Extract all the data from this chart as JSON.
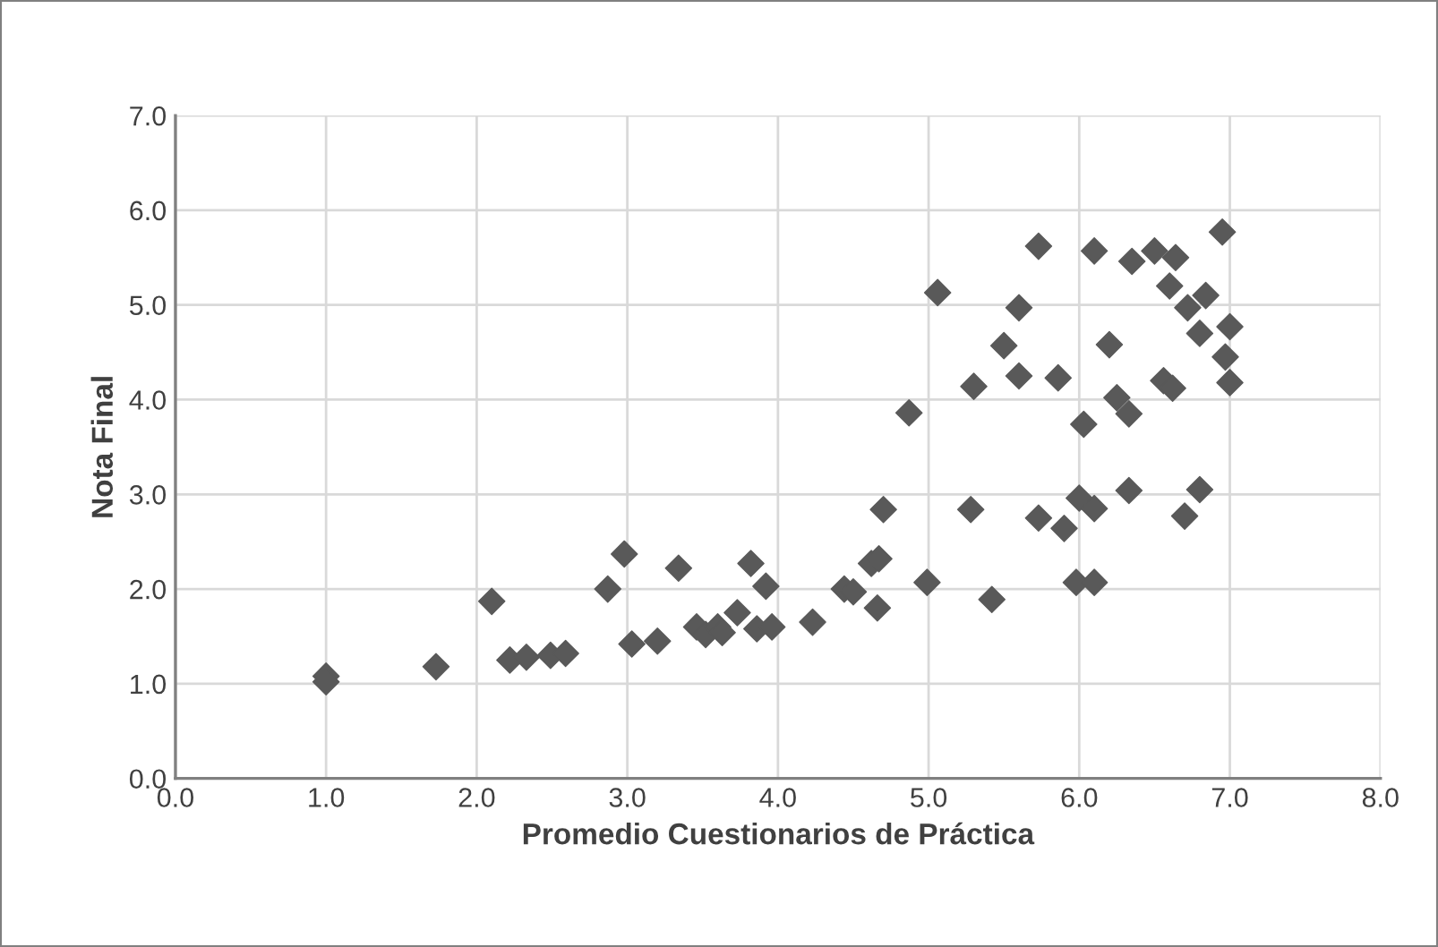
{
  "chart_data": {
    "type": "scatter",
    "xlabel": "Promedio Cuestionarios de Práctica",
    "ylabel": "Nota Final",
    "xlim": [
      0,
      8
    ],
    "ylim": [
      0,
      7
    ],
    "xticks": [
      {
        "value": 0,
        "label": "0.0"
      },
      {
        "value": 1,
        "label": "1.0"
      },
      {
        "value": 2,
        "label": "2.0"
      },
      {
        "value": 3,
        "label": "3.0"
      },
      {
        "value": 4,
        "label": "4.0"
      },
      {
        "value": 5,
        "label": "5.0"
      },
      {
        "value": 6,
        "label": "6.0"
      },
      {
        "value": 7,
        "label": "7.0"
      },
      {
        "value": 8,
        "label": "8.0"
      }
    ],
    "yticks": [
      {
        "value": 0,
        "label": "0.0"
      },
      {
        "value": 1,
        "label": "1.0"
      },
      {
        "value": 2,
        "label": "2.0"
      },
      {
        "value": 3,
        "label": "3.0"
      },
      {
        "value": 4,
        "label": "4.0"
      },
      {
        "value": 5,
        "label": "5.0"
      },
      {
        "value": 6,
        "label": "6.0"
      },
      {
        "value": 7,
        "label": "7.0"
      }
    ],
    "grid": true,
    "marker": "diamond",
    "legend": false,
    "series": [
      {
        "color": "#595959",
        "x": [
          1.0,
          1.0,
          1.73,
          2.1,
          2.22,
          2.33,
          2.49,
          2.59,
          2.87,
          2.98,
          3.03,
          3.2,
          3.34,
          3.46,
          3.52,
          3.6,
          3.63,
          3.73,
          3.82,
          3.86,
          3.92,
          3.96,
          4.23,
          4.44,
          4.5,
          4.62,
          4.67,
          4.66,
          4.7,
          4.87,
          4.99,
          5.06,
          5.28,
          5.3,
          5.42,
          5.5,
          5.6,
          5.6,
          5.73,
          5.73,
          5.86,
          5.9,
          5.98,
          6.0,
          6.03,
          6.1,
          6.1,
          6.1,
          6.2,
          6.25,
          6.33,
          6.33,
          6.35,
          6.5,
          6.56,
          6.6,
          6.62,
          6.64,
          6.7,
          6.72,
          6.8,
          6.8,
          6.84,
          6.95,
          6.97,
          7.0,
          7.0
        ],
        "values": [
          1.08,
          1.02,
          1.18,
          1.87,
          1.25,
          1.28,
          1.3,
          1.32,
          2.0,
          2.37,
          1.42,
          1.45,
          2.22,
          1.6,
          1.52,
          1.6,
          1.54,
          1.75,
          2.27,
          1.58,
          2.03,
          1.6,
          1.65,
          2.0,
          1.97,
          2.27,
          2.32,
          1.8,
          2.84,
          3.86,
          2.07,
          5.13,
          2.84,
          4.14,
          1.89,
          4.57,
          4.97,
          4.25,
          2.75,
          5.62,
          4.23,
          2.64,
          2.07,
          2.96,
          3.74,
          2.07,
          5.57,
          2.85,
          4.58,
          4.02,
          3.85,
          3.04,
          5.46,
          5.57,
          4.2,
          5.2,
          4.12,
          5.5,
          2.77,
          4.97,
          3.05,
          4.7,
          5.1,
          5.77,
          4.45,
          4.77,
          4.18
        ]
      }
    ]
  }
}
